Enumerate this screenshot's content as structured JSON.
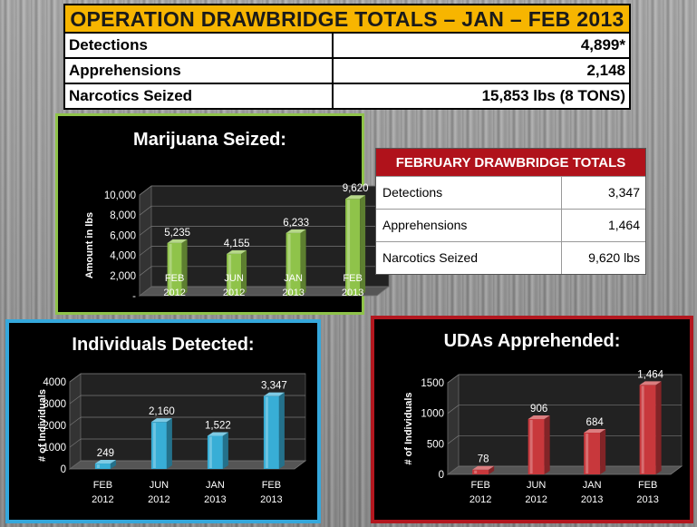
{
  "top_table": {
    "title": "OPERATION DRAWBRIDGE TOTALS – JAN – FEB 2013",
    "rows": [
      {
        "label": "Detections",
        "value": "4,899*"
      },
      {
        "label": "Apprehensions",
        "value": "2,148"
      },
      {
        "label": "Narcotics Seized",
        "value": "15,853 lbs (8 TONS)"
      }
    ]
  },
  "feb_table": {
    "title": "FEBRUARY DRAWBRIDGE TOTALS",
    "rows": [
      {
        "label": "Detections",
        "value": "3,347"
      },
      {
        "label": "Apprehensions",
        "value": "1,464"
      },
      {
        "label": "Narcotics Seized",
        "value": "9,620 lbs"
      }
    ]
  },
  "colors": {
    "marijuana_border": "#8fc34a",
    "individuals_border": "#35a8dc",
    "udas_border": "#b3171f",
    "title_bar": "#f7b500",
    "feb_header": "#b0121b"
  },
  "chart_data": [
    {
      "type": "bar",
      "title": "Marijuana Seized:",
      "ylabel": "Amount in lbs",
      "categories": [
        "FEB\n2012",
        "JUN\n2012",
        "JAN\n2013",
        "FEB\n2013"
      ],
      "values": [
        5235,
        4155,
        6233,
        9620
      ],
      "value_labels": [
        "5,235",
        "4,155",
        "6,233",
        "9,620"
      ],
      "yticks": [
        "-",
        "2,000",
        "4,000",
        "6,000",
        "8,000",
        "10,000"
      ],
      "ylim": [
        0,
        10000
      ],
      "color": "#8fc34a"
    },
    {
      "type": "bar",
      "title": "Individuals Detected:",
      "ylabel": "# of Individuals",
      "categories": [
        "FEB\n2012",
        "JUN\n2012",
        "JAN\n2013",
        "FEB\n2013"
      ],
      "values": [
        249,
        2160,
        1522,
        3347
      ],
      "value_labels": [
        "249",
        "2,160",
        "1,522",
        "3,347"
      ],
      "yticks": [
        "0",
        "1000",
        "2000",
        "3000",
        "4000"
      ],
      "ylim": [
        0,
        4000
      ],
      "color": "#38aed6"
    },
    {
      "type": "bar",
      "title": "UDAs Apprehended:",
      "ylabel": "# of Individuals",
      "categories": [
        "FEB\n2012",
        "JUN\n2012",
        "JAN\n2013",
        "FEB\n2013"
      ],
      "values": [
        78,
        906,
        684,
        1464
      ],
      "value_labels": [
        "78",
        "906",
        "684",
        "1,464"
      ],
      "yticks": [
        "0",
        "500",
        "1000",
        "1500"
      ],
      "ylim": [
        0,
        1500
      ],
      "color": "#c8383c"
    }
  ]
}
